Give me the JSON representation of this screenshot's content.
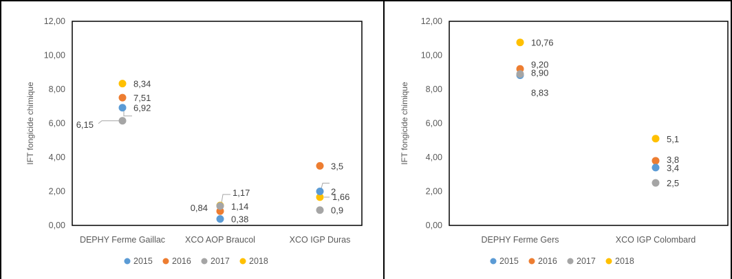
{
  "colors": {
    "2015": "#5B9BD5",
    "2016": "#ED7D31",
    "2017": "#A5A5A5",
    "2018": "#FFC000"
  },
  "chart_data": [
    {
      "type": "scatter",
      "title": "",
      "xlabel": "",
      "ylabel": "IFT fongicide chimique",
      "ylim": [
        0,
        12
      ],
      "yticks": [
        "0,00",
        "2,00",
        "4,00",
        "6,00",
        "8,00",
        "10,00",
        "12,00"
      ],
      "grid": false,
      "legend_position": "bottom",
      "categories": [
        "DEPHY Ferme Gaillac",
        "XCO AOP Braucol",
        "XCO IGP Duras"
      ],
      "series": [
        {
          "name": "2015",
          "values": [
            6.92,
            0.38,
            2.0
          ],
          "labels": [
            "6,92",
            "0,38",
            "2"
          ]
        },
        {
          "name": "2016",
          "values": [
            7.51,
            0.84,
            3.5
          ],
          "labels": [
            "7,51",
            "0,84",
            "3,5"
          ]
        },
        {
          "name": "2017",
          "values": [
            6.15,
            1.14,
            0.9
          ],
          "labels": [
            "6,15",
            "1,14",
            "0,9"
          ]
        },
        {
          "name": "2018",
          "values": [
            8.34,
            1.17,
            1.66
          ],
          "labels": [
            "8,34",
            "1,17",
            "1,66"
          ]
        }
      ]
    },
    {
      "type": "scatter",
      "title": "",
      "xlabel": "",
      "ylabel": "IFT fongicide chimique",
      "ylim": [
        0,
        12
      ],
      "yticks": [
        "0,00",
        "2,00",
        "4,00",
        "6,00",
        "8,00",
        "10,00",
        "12,00"
      ],
      "grid": false,
      "legend_position": "bottom",
      "categories": [
        "DEPHY Ferme Gers",
        "XCO IGP Colombard"
      ],
      "series": [
        {
          "name": "2015",
          "values": [
            8.83,
            3.4
          ],
          "labels": [
            "8,83",
            "3,4"
          ]
        },
        {
          "name": "2016",
          "values": [
            9.2,
            3.8
          ],
          "labels": [
            "9,20",
            "3,8"
          ]
        },
        {
          "name": "2017",
          "values": [
            8.9,
            2.5
          ],
          "labels": [
            "8,90",
            "2,5"
          ]
        },
        {
          "name": "2018",
          "values": [
            10.76,
            5.1
          ],
          "labels": [
            "10,76",
            "5,1"
          ]
        }
      ]
    }
  ]
}
